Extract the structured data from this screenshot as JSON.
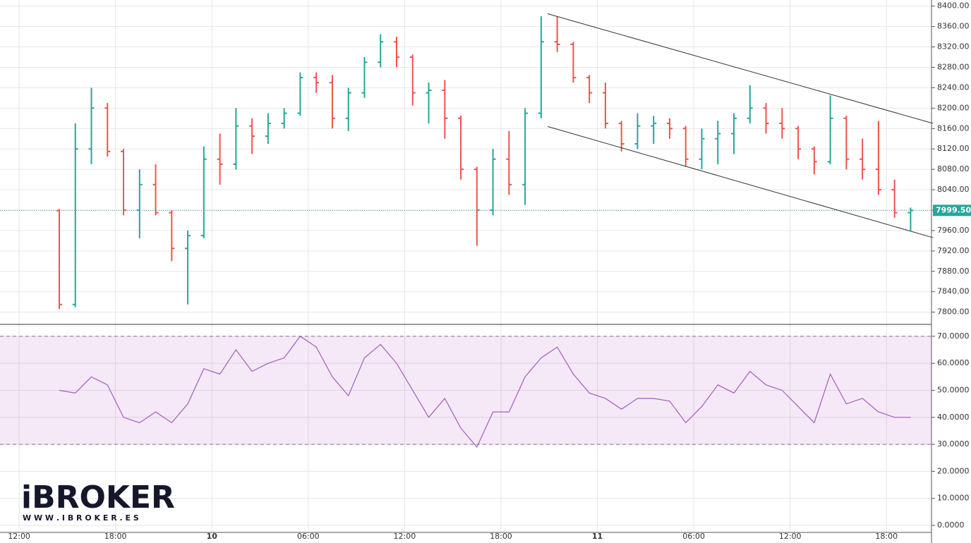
{
  "chart_data": [
    {
      "type": "ohlc",
      "x": [
        2.5,
        3.5,
        4.5,
        5.5,
        6.5,
        7.5,
        8.5,
        9.5,
        10.5,
        11.5,
        12.5,
        13.5,
        14.5,
        15.5,
        16.5,
        17.5,
        18.5,
        19.5,
        20.5,
        21.5,
        22.5,
        23.5,
        24.5,
        25.5,
        26.5,
        27.5,
        28.5,
        29.5,
        30.5,
        31.5,
        32.5,
        33.5,
        34.5,
        35.5,
        36.5,
        37.5,
        38.5,
        39.5,
        40.5,
        41.5,
        42.5,
        43.5,
        44.5,
        45.5,
        46.5,
        47.5,
        48.5,
        49.5,
        50.5,
        51.5,
        52.5,
        53.5,
        54.5,
        55.5
      ],
      "open": [
        7999,
        7815,
        8120,
        8200,
        8115,
        8000,
        8050,
        7995,
        7925,
        7950,
        8100,
        8090,
        8165,
        8145,
        8170,
        8190,
        8260,
        8250,
        8180,
        8230,
        8290,
        8330,
        8300,
        8230,
        8235,
        8180,
        8080,
        8000,
        8100,
        8050,
        8190,
        8330,
        8325,
        8260,
        8230,
        8170,
        8130,
        8165,
        8170,
        8160,
        8100,
        8140,
        8150,
        8180,
        8200,
        8170,
        8160,
        8120,
        8095,
        8180,
        8100,
        8080,
        8040,
        7995
      ],
      "high": [
        8002,
        8170,
        8240,
        8210,
        8120,
        8080,
        8090,
        8000,
        7960,
        8125,
        8150,
        8200,
        8180,
        8190,
        8200,
        8270,
        8270,
        8265,
        8240,
        8300,
        8345,
        8340,
        8305,
        8250,
        8255,
        8185,
        8085,
        8120,
        8155,
        8200,
        8380,
        8380,
        8330,
        8265,
        8250,
        8175,
        8190,
        8185,
        8180,
        8165,
        8160,
        8175,
        8190,
        8245,
        8210,
        8200,
        8165,
        8125,
        8225,
        8185,
        8140,
        8175,
        8060,
        8005
      ],
      "low": [
        7806,
        7810,
        8090,
        8105,
        7990,
        7945,
        7990,
        7900,
        7815,
        7945,
        8050,
        8080,
        8110,
        8130,
        8160,
        8185,
        8230,
        8160,
        8155,
        8220,
        8280,
        8280,
        8205,
        8170,
        8140,
        8060,
        7930,
        7990,
        8030,
        8010,
        8180,
        8310,
        8250,
        8210,
        8160,
        8115,
        8120,
        8130,
        8140,
        8085,
        8080,
        8090,
        8110,
        8170,
        8150,
        8140,
        8100,
        8070,
        8090,
        8080,
        8060,
        8030,
        7985,
        7960
      ],
      "close": [
        7815,
        8120,
        8200,
        8115,
        8000,
        8050,
        7995,
        7925,
        7950,
        8100,
        8090,
        8165,
        8145,
        8170,
        8190,
        8260,
        8250,
        8180,
        8230,
        8290,
        8330,
        8300,
        8230,
        8235,
        8180,
        8080,
        8000,
        8100,
        8050,
        8190,
        8330,
        8325,
        8260,
        8230,
        8170,
        8130,
        8165,
        8170,
        8160,
        8100,
        8140,
        8150,
        8180,
        8200,
        8170,
        8160,
        8120,
        8095,
        8180,
        8100,
        8080,
        8040,
        7995,
        7999.5
      ],
      "up_color": "#26a69a",
      "down_color": "#ef5350",
      "xlim": [
        -1.19,
        56.8
      ],
      "ylim": [
        7776,
        8412
      ],
      "yticks": [
        {
          "value": 7800,
          "label": "7800.00"
        },
        {
          "value": 7840,
          "label": "7840.00"
        },
        {
          "value": 7880,
          "label": "7880.00"
        },
        {
          "value": 7920,
          "label": "7920.00"
        },
        {
          "value": 7960,
          "label": "7960.00"
        },
        {
          "value": 8000,
          "label": "8000.00"
        },
        {
          "value": 8040,
          "label": "8040.00"
        },
        {
          "value": 8080,
          "label": "8080.00"
        },
        {
          "value": 8120,
          "label": "8120.00"
        },
        {
          "value": 8160,
          "label": "8160.00"
        },
        {
          "value": 8200,
          "label": "8200.00"
        },
        {
          "value": 8240,
          "label": "8240.00"
        },
        {
          "value": 8280,
          "label": "8280.00"
        },
        {
          "value": 8320,
          "label": "8320.00"
        },
        {
          "value": 8360,
          "label": "8360.00"
        },
        {
          "value": 8400,
          "label": "8400.00"
        }
      ],
      "last_price": {
        "value": 7999.5,
        "label": "7999.50",
        "color": "#26a69a"
      },
      "channel": [
        {
          "x": [
            32.9,
            56.9
          ],
          "y": [
            8385,
            8170
          ]
        },
        {
          "x": [
            32.9,
            56.9
          ],
          "y": [
            8164,
            7946
          ]
        }
      ],
      "grid": true
    },
    {
      "type": "line",
      "x": [
        2.5,
        3.5,
        4.5,
        5.5,
        6.5,
        7.5,
        8.5,
        9.5,
        10.5,
        11.5,
        12.5,
        13.5,
        14.5,
        15.5,
        16.5,
        17.5,
        18.5,
        19.5,
        20.5,
        21.5,
        22.5,
        23.5,
        24.5,
        25.5,
        26.5,
        27.5,
        28.5,
        29.5,
        30.5,
        31.5,
        32.5,
        33.5,
        34.5,
        35.5,
        36.5,
        37.5,
        38.5,
        39.5,
        40.5,
        41.5,
        42.5,
        43.5,
        44.5,
        45.5,
        46.5,
        47.5,
        48.5,
        49.5,
        50.5,
        51.5,
        52.5,
        53.5,
        54.5,
        55.5
      ],
      "values": [
        50,
        49,
        55,
        52,
        40,
        38,
        42,
        38,
        45,
        58,
        56,
        65,
        57,
        60,
        62,
        70,
        66,
        55,
        48,
        62,
        67,
        60,
        50,
        40,
        47,
        36,
        29,
        42,
        42,
        55,
        62,
        66,
        56,
        49,
        47,
        43,
        47,
        47,
        46,
        38,
        44,
        52,
        49,
        57,
        52,
        50,
        44,
        38,
        56,
        45,
        47,
        42,
        40,
        40
      ],
      "color": "#a45cc0",
      "band": [
        30,
        70
      ],
      "xlim": [
        -1.19,
        56.8
      ],
      "ylim": [
        -2.6,
        74.4
      ],
      "yticks": [
        {
          "value": 0,
          "label": "0.0000"
        },
        {
          "value": 10,
          "label": "10.0000"
        },
        {
          "value": 20,
          "label": "20.0000"
        },
        {
          "value": 30,
          "label": "30.0000"
        },
        {
          "value": 40,
          "label": "40.0000"
        },
        {
          "value": 50,
          "label": "50.0000"
        },
        {
          "value": 60,
          "label": "60.0000"
        },
        {
          "value": 70,
          "label": "70.0000"
        }
      ],
      "xticks": [
        {
          "value": 0,
          "label": "12:00"
        },
        {
          "value": 6,
          "label": "18:00"
        },
        {
          "value": 12,
          "label": "10"
        },
        {
          "value": 18,
          "label": "06:00"
        },
        {
          "value": 24,
          "label": "12:00"
        },
        {
          "value": 30,
          "label": "18:00"
        },
        {
          "value": 36,
          "label": "11"
        },
        {
          "value": 42,
          "label": "06:00"
        },
        {
          "value": 48,
          "label": "12:00"
        },
        {
          "value": 54,
          "label": "18:00"
        }
      ],
      "grid": true
    }
  ],
  "logo": {
    "name": "iBROKER",
    "url": "W W W . I B R O K E R . E S"
  }
}
